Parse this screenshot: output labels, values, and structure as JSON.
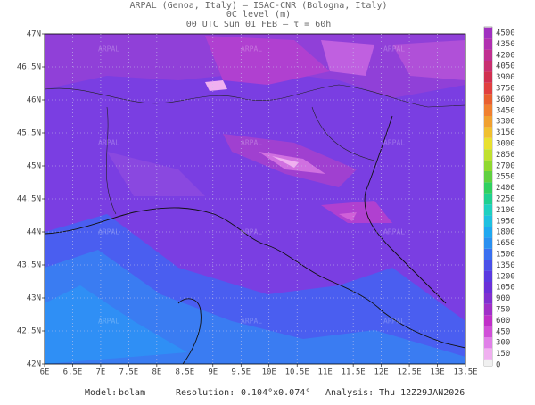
{
  "header": {
    "line1": "ARPAL (Genoa, Italy)  —  ISAC-CNR (Bologna, Italy)",
    "line2": "0C level (m)",
    "line3": "00 UTC Sun 01 FEB  –  τ = 60h"
  },
  "map": {
    "watermark": "ARPAL",
    "lon_labels": [
      "6E",
      "6.5E",
      "7E",
      "7.5E",
      "8E",
      "8.5E",
      "9E",
      "9.5E",
      "10E",
      "10.5E",
      "11E",
      "11.5E",
      "12E",
      "12.5E",
      "13E",
      "13.5E"
    ],
    "lat_labels": [
      "47N",
      "46.5N",
      "46N",
      "45.5N",
      "45N",
      "44.5N",
      "44N",
      "43.5N",
      "43N",
      "42.5N",
      "42N"
    ]
  },
  "colorbar": {
    "levels": [
      {
        "value": 0,
        "color": "#f0f0f0"
      },
      {
        "value": 150,
        "color": "#f0b0f0"
      },
      {
        "value": 300,
        "color": "#e080e8"
      },
      {
        "value": 450,
        "color": "#d050d8"
      },
      {
        "value": 600,
        "color": "#c030c8"
      },
      {
        "value": 750,
        "color": "#a030c8"
      },
      {
        "value": 900,
        "color": "#8030d0"
      },
      {
        "value": 1050,
        "color": "#6a30d8"
      },
      {
        "value": 1200,
        "color": "#5a3ae0"
      },
      {
        "value": 1350,
        "color": "#4a50e8"
      },
      {
        "value": 1500,
        "color": "#3a70f0"
      },
      {
        "value": 1650,
        "color": "#2a90f0"
      },
      {
        "value": 1800,
        "color": "#20a8f0"
      },
      {
        "value": 1950,
        "color": "#20c0e0"
      },
      {
        "value": 2100,
        "color": "#20d0c0"
      },
      {
        "value": 2250,
        "color": "#20d090"
      },
      {
        "value": 2400,
        "color": "#30d060"
      },
      {
        "value": 2550,
        "color": "#60d040"
      },
      {
        "value": 2700,
        "color": "#90d830"
      },
      {
        "value": 2850,
        "color": "#c0e030"
      },
      {
        "value": 3000,
        "color": "#e8e030"
      },
      {
        "value": 3150,
        "color": "#f0c030"
      },
      {
        "value": 3300,
        "color": "#f0a030"
      },
      {
        "value": 3450,
        "color": "#f08030"
      },
      {
        "value": 3600,
        "color": "#e86030"
      },
      {
        "value": 3750,
        "color": "#e04040"
      },
      {
        "value": 3900,
        "color": "#d03050"
      },
      {
        "value": 4050,
        "color": "#c83070"
      },
      {
        "value": 4200,
        "color": "#c03090"
      },
      {
        "value": 4350,
        "color": "#b030b0"
      },
      {
        "value": 4500,
        "color": "#a030c0"
      }
    ]
  },
  "footer": {
    "model_label": "Model:",
    "model": "bolam",
    "resolution_label": "Resolution:",
    "resolution": "0.104°x0.074°",
    "analysis_label": "Analysis:",
    "analysis": "Thu 12Z29JAN2026"
  }
}
